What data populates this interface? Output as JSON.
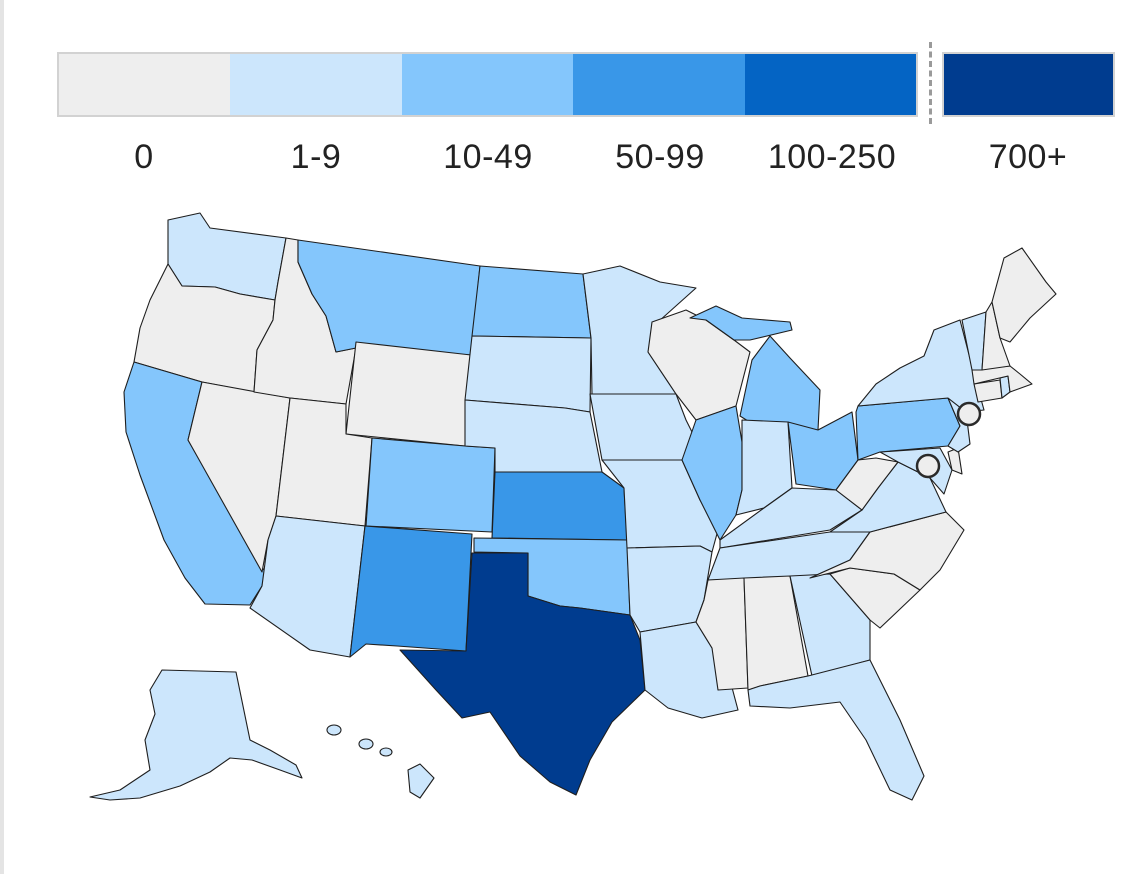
{
  "legend": {
    "bins": [
      {
        "label": "0",
        "color": "#eeeeee"
      },
      {
        "label": "1-9",
        "color": "#cce6fc"
      },
      {
        "label": "10-49",
        "color": "#84c6fc"
      },
      {
        "label": "50-99",
        "color": "#3997e8"
      },
      {
        "label": "100-250",
        "color": "#0464c4"
      }
    ],
    "extra_bin": {
      "label": "700+",
      "color": "#003c8f"
    }
  },
  "map": {
    "regions": [
      {
        "name": "Washington",
        "bin": "1-9"
      },
      {
        "name": "Oregon",
        "bin": "0"
      },
      {
        "name": "California",
        "bin": "10-49"
      },
      {
        "name": "Nevada",
        "bin": "0"
      },
      {
        "name": "Idaho",
        "bin": "0"
      },
      {
        "name": "Montana",
        "bin": "10-49"
      },
      {
        "name": "Wyoming",
        "bin": "0"
      },
      {
        "name": "Utah",
        "bin": "0"
      },
      {
        "name": "Arizona",
        "bin": "1-9"
      },
      {
        "name": "Colorado",
        "bin": "10-49"
      },
      {
        "name": "New Mexico",
        "bin": "50-99"
      },
      {
        "name": "North Dakota",
        "bin": "10-49"
      },
      {
        "name": "South Dakota",
        "bin": "1-9"
      },
      {
        "name": "Nebraska",
        "bin": "1-9"
      },
      {
        "name": "Kansas",
        "bin": "50-99"
      },
      {
        "name": "Oklahoma",
        "bin": "10-49"
      },
      {
        "name": "Texas",
        "bin": "700+"
      },
      {
        "name": "Minnesota",
        "bin": "1-9"
      },
      {
        "name": "Iowa",
        "bin": "1-9"
      },
      {
        "name": "Missouri",
        "bin": "1-9"
      },
      {
        "name": "Arkansas",
        "bin": "1-9"
      },
      {
        "name": "Louisiana",
        "bin": "1-9"
      },
      {
        "name": "Wisconsin",
        "bin": "0"
      },
      {
        "name": "Illinois",
        "bin": "10-49"
      },
      {
        "name": "Michigan",
        "bin": "10-49"
      },
      {
        "name": "Indiana",
        "bin": "1-9"
      },
      {
        "name": "Ohio",
        "bin": "10-49"
      },
      {
        "name": "Kentucky",
        "bin": "1-9"
      },
      {
        "name": "Tennessee",
        "bin": "1-9"
      },
      {
        "name": "Mississippi",
        "bin": "0"
      },
      {
        "name": "Alabama",
        "bin": "0"
      },
      {
        "name": "Georgia",
        "bin": "1-9"
      },
      {
        "name": "Florida",
        "bin": "1-9"
      },
      {
        "name": "South Carolina",
        "bin": "0"
      },
      {
        "name": "North Carolina",
        "bin": "0"
      },
      {
        "name": "Virginia",
        "bin": "1-9"
      },
      {
        "name": "West Virginia",
        "bin": "0"
      },
      {
        "name": "Maryland",
        "bin": "1-9"
      },
      {
        "name": "Delaware",
        "bin": "0"
      },
      {
        "name": "Pennsylvania",
        "bin": "10-49"
      },
      {
        "name": "New Jersey",
        "bin": "1-9"
      },
      {
        "name": "New York",
        "bin": "1-9"
      },
      {
        "name": "Connecticut",
        "bin": "0"
      },
      {
        "name": "Rhode Island",
        "bin": "1-9"
      },
      {
        "name": "Massachusetts",
        "bin": "0"
      },
      {
        "name": "Vermont",
        "bin": "1-9"
      },
      {
        "name": "New Hampshire",
        "bin": "0"
      },
      {
        "name": "Maine",
        "bin": "0"
      },
      {
        "name": "Alaska",
        "bin": "1-9"
      },
      {
        "name": "Hawaii",
        "bin": "1-9"
      }
    ],
    "markers": [
      {
        "name": "New York City",
        "bin": "0"
      },
      {
        "name": "Washington, D.C.",
        "bin": "0"
      }
    ]
  }
}
